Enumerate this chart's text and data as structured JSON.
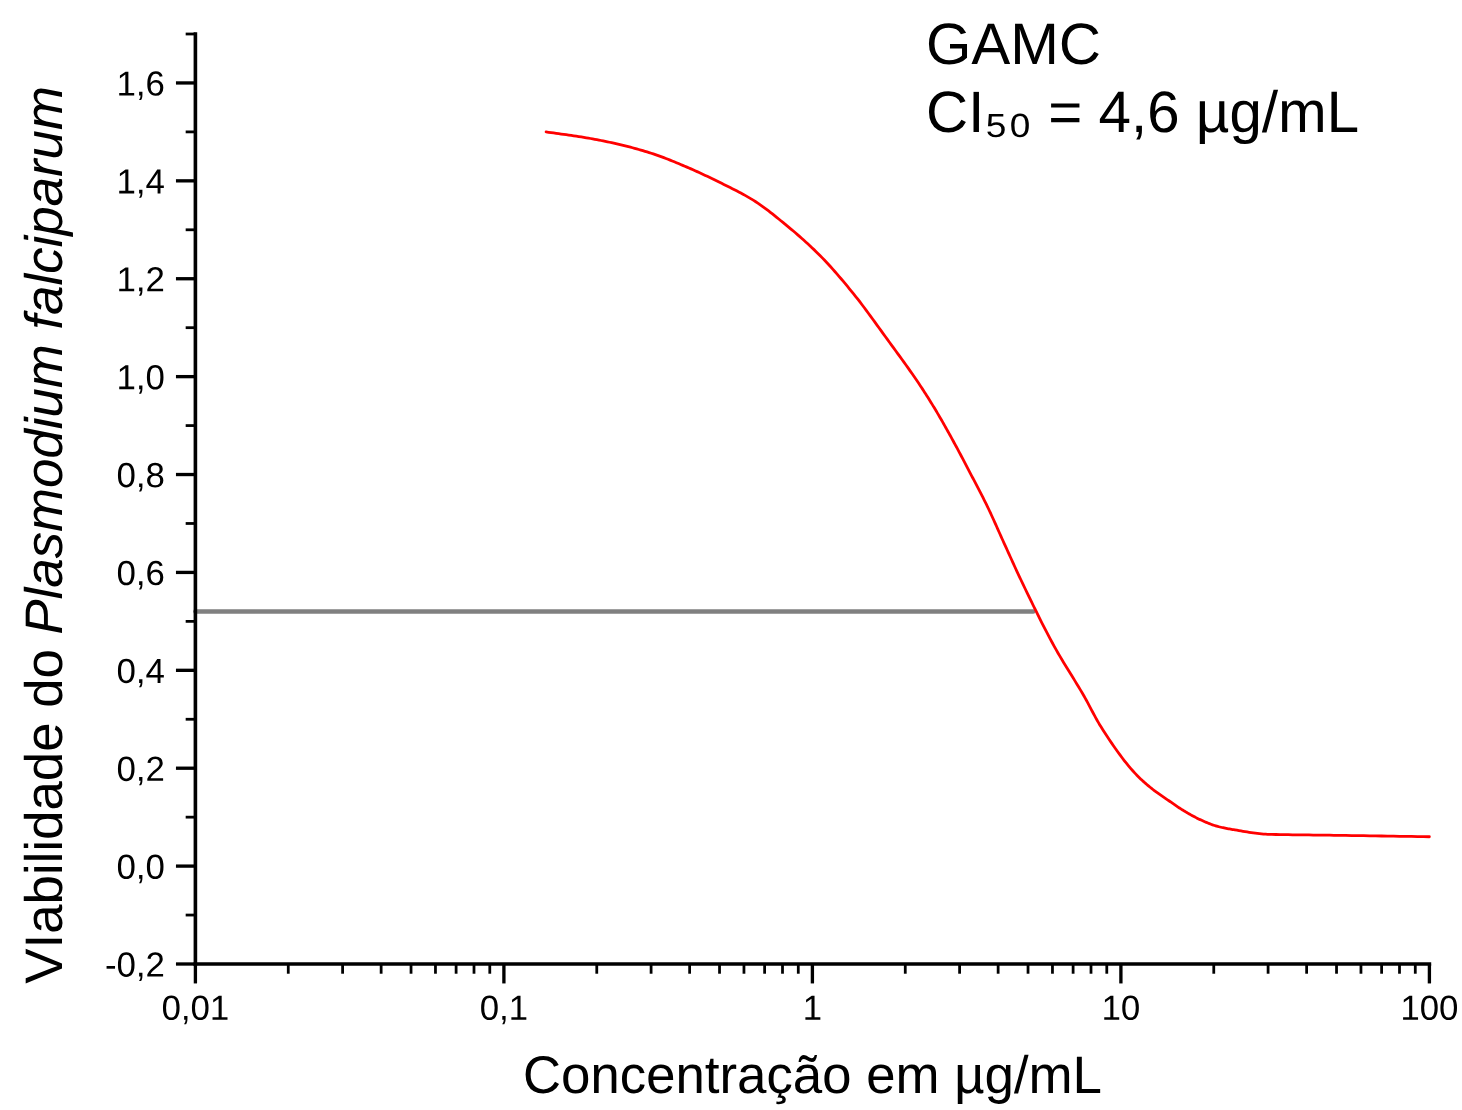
{
  "chart_data": {
    "type": "line",
    "xlabel": "Concentração em µg/mL",
    "ylabel": "VIabilidade do Plasmodium falciparum",
    "annotations": [
      "GAMC",
      "CI₅₀ = 4,6 µg/mL"
    ],
    "log": "x",
    "xlim": [
      0.01,
      100
    ],
    "xticks": [
      {
        "value": 0.01,
        "label": "0,01"
      },
      {
        "value": 0.1,
        "label": "0,1"
      },
      1,
      10,
      100
    ],
    "ylim": [
      -0.2,
      1.7
    ],
    "yticks": [
      {
        "value": -0.2,
        "label": "-0,2"
      },
      {
        "value": 0,
        "label": "0,0"
      },
      {
        "value": 0.2,
        "label": "0,2"
      },
      {
        "value": 0.4,
        "label": "0,4"
      },
      {
        "value": 0.6,
        "label": "0,6"
      },
      {
        "value": 0.8,
        "label": "0,8"
      },
      {
        "value": 1.0,
        "label": "1,0"
      },
      {
        "value": 1.2,
        "label": "1,2"
      },
      {
        "value": 1.4,
        "label": "1,4"
      },
      {
        "value": 1.6,
        "label": "1,6"
      }
    ],
    "series": [
      {
        "color": "#ff0000",
        "x": [
          0.137,
          0.185,
          0.238,
          0.305,
          0.392,
          0.5,
          0.645,
          0.828,
          1.06,
          1.36,
          1.75,
          2.24,
          2.54,
          2.88,
          3.26,
          3.69,
          4.18,
          4.74,
          6.08,
          7.6,
          8.61,
          11.1,
          12.5,
          14.2,
          16.1,
          18.2,
          20.6,
          23.4,
          29.9,
          49,
          100
        ],
        "values": [
          1.5,
          1.488,
          1.474,
          1.455,
          1.428,
          1.397,
          1.36,
          1.308,
          1.247,
          1.169,
          1.076,
          0.981,
          0.926,
          0.865,
          0.801,
          0.735,
          0.66,
          0.585,
          0.449,
          0.347,
          0.285,
          0.19,
          0.16,
          0.135,
          0.112,
          0.094,
          0.081,
          0.074,
          0.065,
          0.063,
          0.06
        ]
      },
      {
        "color": "#808080",
        "x": [
          0.01,
          5.2
        ],
        "values": [
          0.52,
          0.52
        ]
      }
    ]
  }
}
